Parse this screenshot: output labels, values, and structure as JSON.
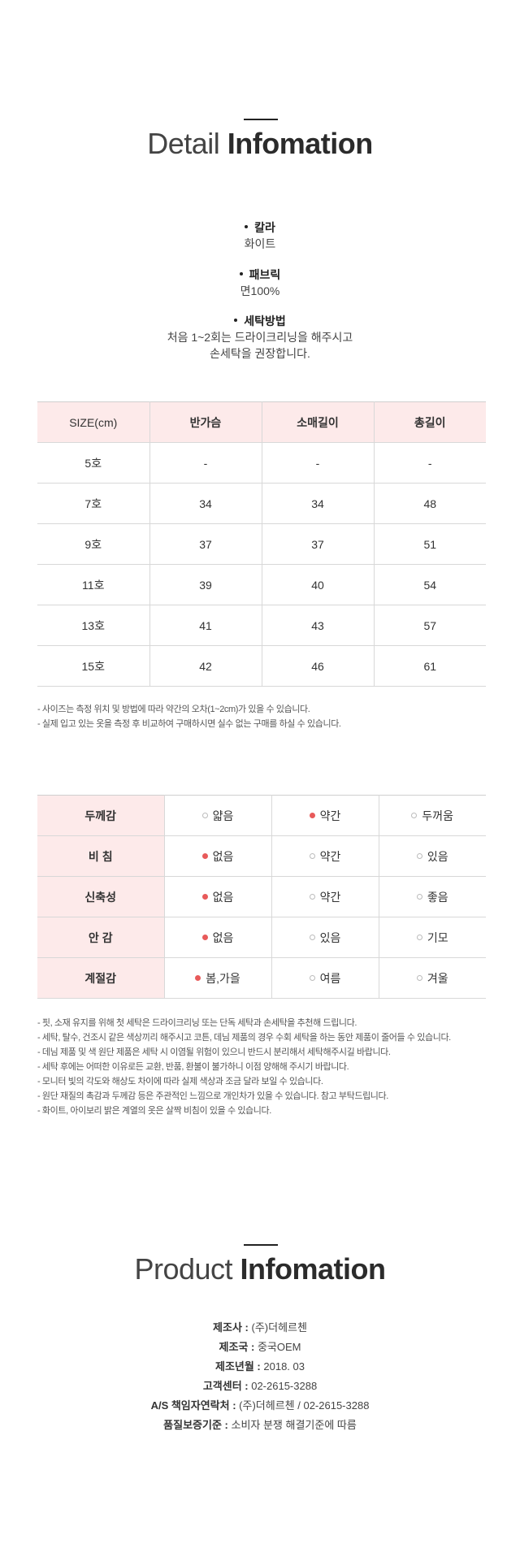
{
  "detail": {
    "title_light": "Detail",
    "title_bold": "Infomation",
    "specs": [
      {
        "label": "칼라",
        "value": [
          "화이트"
        ]
      },
      {
        "label": "패브릭",
        "value": [
          "면100%"
        ]
      },
      {
        "label": "세탁방법",
        "value": [
          "처음 1~2회는 드라이크리닝을 해주시고",
          "손세탁을 권장합니다."
        ]
      }
    ]
  },
  "size_table": {
    "headers": [
      "SIZE(cm)",
      "반가슴",
      "소매길이",
      "총길이"
    ],
    "rows": [
      [
        "5호",
        "-",
        "-",
        "-"
      ],
      [
        "7호",
        "34",
        "34",
        "48"
      ],
      [
        "9호",
        "37",
        "37",
        "51"
      ],
      [
        "11호",
        "39",
        "40",
        "54"
      ],
      [
        "13호",
        "41",
        "43",
        "57"
      ],
      [
        "15호",
        "42",
        "46",
        "61"
      ]
    ],
    "notes": [
      "- 사이즈는 측정 위치 및 방법에 따라 약간의 오차(1~2cm)가 있을 수 있습니다.",
      "- 실제 입고 있는 옷을 측정 후 비교하여 구매하시면 실수 없는 구매를 하실 수 있습니다."
    ]
  },
  "feel_table": {
    "rows": [
      {
        "label": "두께감",
        "options": [
          "얇음",
          "약간",
          "두꺼움"
        ],
        "selected": 1
      },
      {
        "label": "비 침",
        "options": [
          "없음",
          "약간",
          "있음"
        ],
        "selected": 0
      },
      {
        "label": "신축성",
        "options": [
          "없음",
          "약간",
          "좋음"
        ],
        "selected": 0
      },
      {
        "label": "안 감",
        "options": [
          "없음",
          "있음",
          "기모"
        ],
        "selected": 0
      },
      {
        "label": "계절감",
        "options": [
          "봄,가을",
          "여름",
          "겨울"
        ],
        "selected": 0
      }
    ],
    "notes": [
      "- 핏, 소재 유지를 위해 첫 세탁은 드라이크리닝 또는 단독 세탁과 손세탁을 추천해 드립니다.",
      "- 세탁, 탈수, 건조시 같은 색상끼리 해주시고 코튼, 데님 제품의 경우 수회 세탁을 하는 동안 제품이 줄어들 수 있습니다.",
      "- 데님 제품 및 색 원단 제품은 세탁 시 이염될 위험이 있으니 반드시 분리해서 세탁해주시길 바랍니다.",
      "- 세탁 후에는 어떠한 이유로든 교환, 반품, 환불이 불가하니 이점 양해해 주시기 바랍니다.",
      "- 모니터 빛의 각도와 해상도 차이에 따라 실제 색상과 조금 달라 보일 수 있습니다.",
      "- 원단 재질의 촉감과 두께감 등은 주관적인 느낌으로 개인차가 있을 수 있습니다. 참고 부탁드립니다.",
      "- 화이트, 아이보리 밝은 계열의 옷은 살짝 비침이 있을 수 있습니다."
    ]
  },
  "product": {
    "title_light": "Product",
    "title_bold": "Infomation",
    "rows": [
      {
        "label": "제조사 :",
        "value": "(주)더헤르첸"
      },
      {
        "label": "제조국 :",
        "value": "중국OEM"
      },
      {
        "label": "제조년월 :",
        "value": "2018. 03"
      },
      {
        "label": "고객센터 :",
        "value": "02-2615-3288"
      },
      {
        "label": "A/S 책임자연락처 :",
        "value": "(주)더헤르첸 / 02-2615-3288"
      },
      {
        "label": "품질보증기준 :",
        "value": "소비자 분쟁 해결기준에 따름"
      }
    ]
  }
}
